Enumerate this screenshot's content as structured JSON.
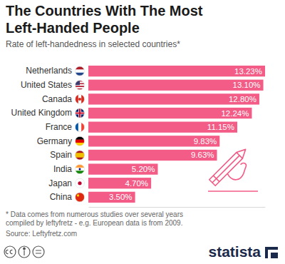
{
  "chart_data": {
    "type": "bar",
    "title": "The Countries With The Most Left-Handed People",
    "subtitle": "Rate of left-handedness in selected countries*",
    "categories": [
      "Netherlands",
      "United States",
      "Canada",
      "United Kingdom",
      "France",
      "Germany",
      "Spain",
      "India",
      "Japan",
      "China"
    ],
    "values": [
      13.23,
      13.1,
      12.8,
      12.24,
      11.15,
      9.83,
      9.63,
      5.2,
      4.7,
      3.5
    ],
    "value_labels": [
      "13.23%",
      "13.10%",
      "12.80%",
      "12.24%",
      "11.15%",
      "9.83%",
      "9.63%",
      "5.20%",
      "4.70%",
      "3.50%"
    ],
    "color": "#f25c86",
    "orientation": "horizontal",
    "data_labels": true,
    "tick_labels": "y",
    "grid": false,
    "xlim": [
      0,
      13.23
    ],
    "annotations": [
      "* Data comes from numerous studies over several years compiled by leftyfretz - e.g. European data is from 2009.",
      "Source: Leftyfretz.com",
      "statista"
    ]
  }
}
